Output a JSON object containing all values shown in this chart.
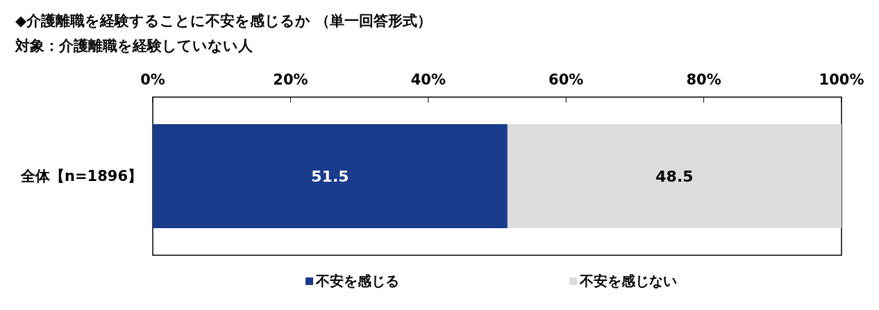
{
  "chart_data": {
    "type": "bar",
    "orientation": "horizontal",
    "stacked": true,
    "title": "◆介護離職を経験することに不安を感じるか （単一回答形式）",
    "subtitle": "対象：介護離職を経験していない人",
    "categories": [
      "全体【n=1896】"
    ],
    "series": [
      {
        "name": "不安を感じる",
        "color": "#1b3c8c",
        "values": [
          51.5
        ]
      },
      {
        "name": "不安を感じない",
        "color": "#dcdcdc",
        "values": [
          48.5
        ]
      }
    ],
    "xlim": [
      0,
      100
    ],
    "xticks": [
      {
        "value": 0,
        "label": "0%"
      },
      {
        "value": 20,
        "label": "20%"
      },
      {
        "value": 40,
        "label": "40%"
      },
      {
        "value": 60,
        "label": "60%"
      },
      {
        "value": 80,
        "label": "80%"
      },
      {
        "value": 100,
        "label": "100%"
      }
    ],
    "data_labels": true,
    "legend": "bottom",
    "grid": false
  }
}
